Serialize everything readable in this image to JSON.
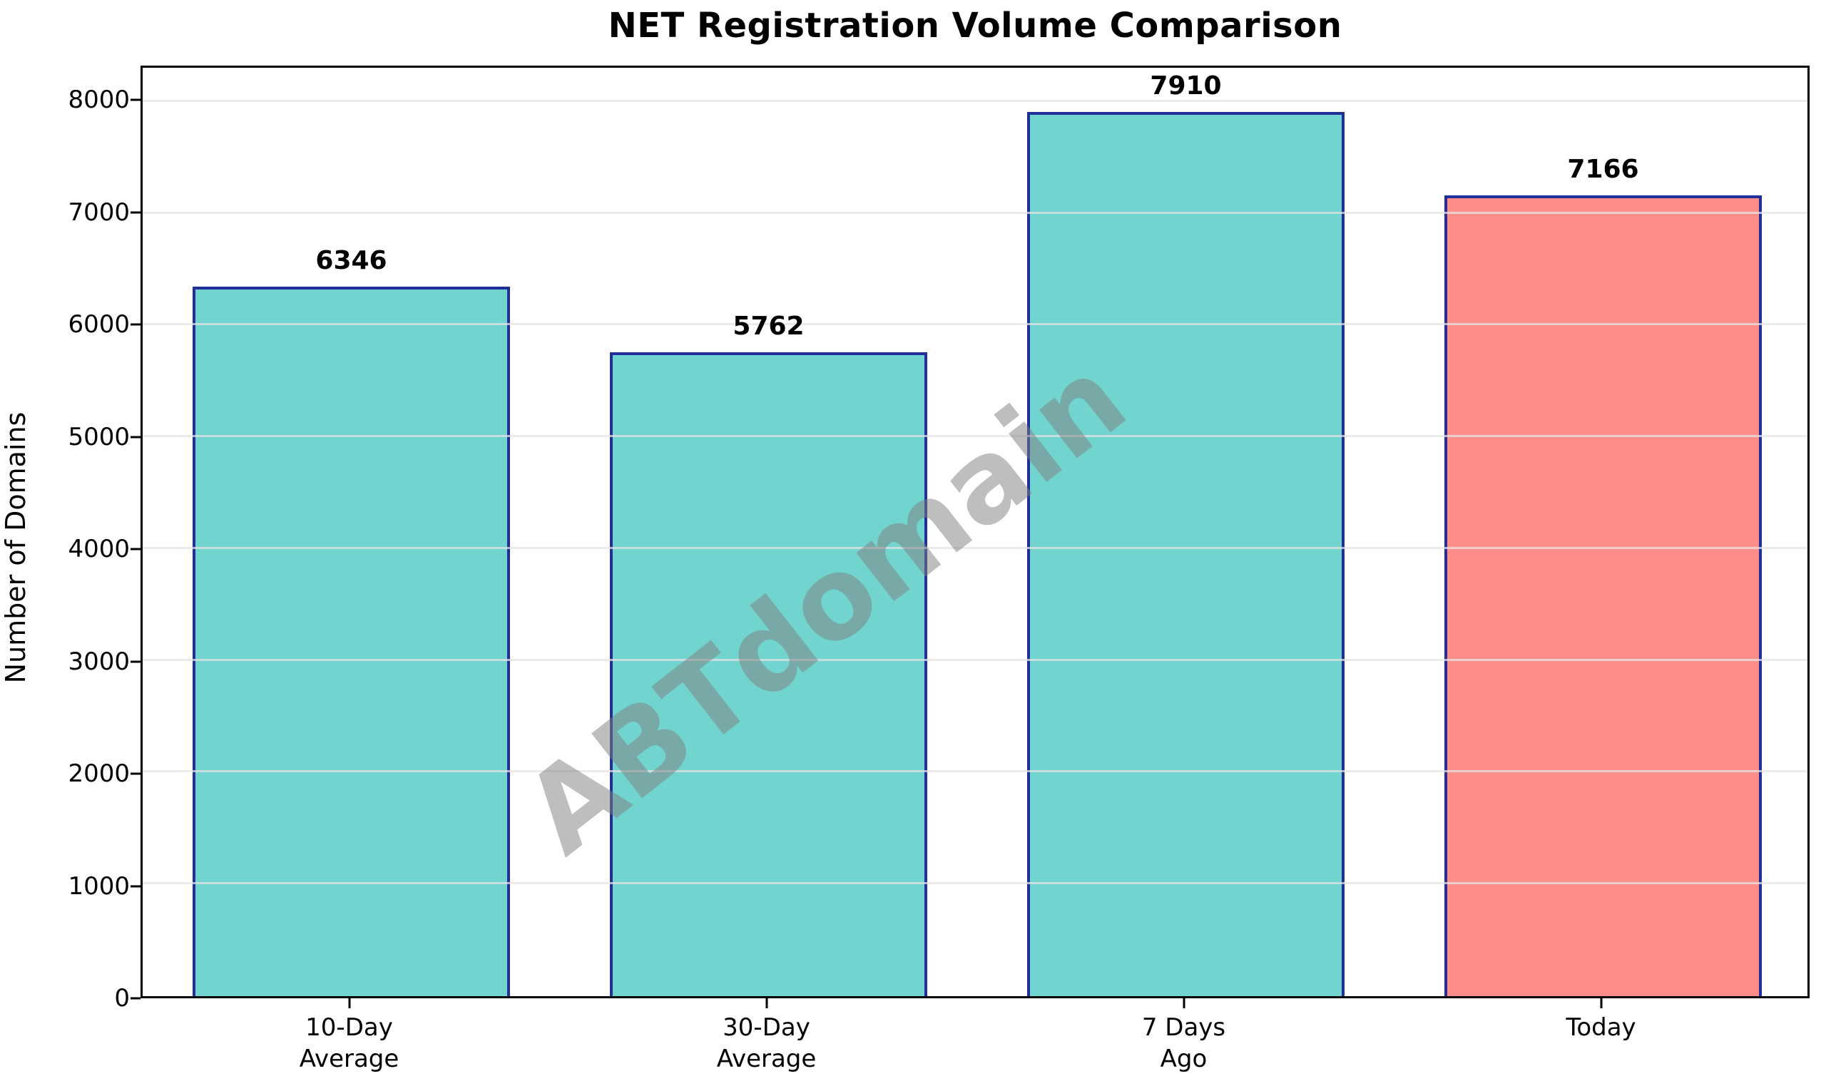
{
  "title": "NET Registration Volume Comparison",
  "watermark": "ABTdomain",
  "chart_data": {
    "type": "bar",
    "title": "NET Registration Volume Comparison",
    "xlabel": "",
    "ylabel": "Number of Domains",
    "categories": [
      "10-Day Average",
      "30-Day Average",
      "7 Days Ago",
      "Today"
    ],
    "tick_labels": [
      [
        "10-Day",
        "Average"
      ],
      [
        "30-Day",
        "Average"
      ],
      [
        "7 Days",
        "Ago"
      ],
      [
        "Today"
      ]
    ],
    "values": [
      6346,
      5762,
      7910,
      7166
    ],
    "value_labels": [
      "6346",
      "5762",
      "7910",
      "7166"
    ],
    "bar_colors": [
      "#72d4cf",
      "#72d4cf",
      "#72d4cf",
      "#fe8c89"
    ],
    "edge_color": "#222f9b",
    "grid_color": "#e4e4e4",
    "watermark_text": "ABTdomain",
    "watermark_color": "#7f7f7f",
    "ylim": [
      0,
      8305
    ],
    "yticks": [
      0,
      1000,
      2000,
      3000,
      4000,
      5000,
      6000,
      7000,
      8000
    ],
    "grid": true,
    "legend": "none",
    "bar_width_fraction": 0.76
  }
}
